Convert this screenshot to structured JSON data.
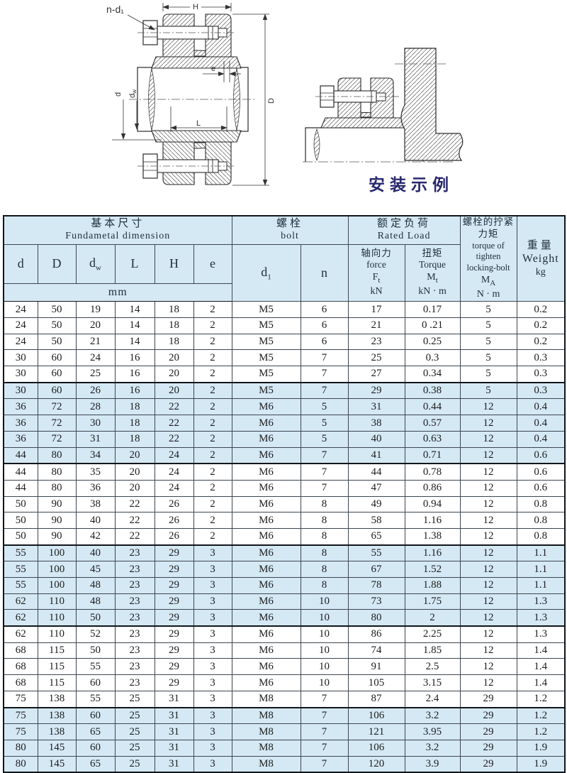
{
  "drawing": {
    "left_labels": {
      "n_d1": "n-d₁",
      "H": "H",
      "e": "e",
      "d": "d",
      "dw_base": "d",
      "dw_sub": "w",
      "L": "L",
      "D": "D"
    },
    "right_caption": "安装示例"
  },
  "colors": {
    "row_shade": "#d5e9f5",
    "caption_navy": "#28286e",
    "line_dark": "#2a2a2a"
  },
  "table": {
    "header": {
      "basic": {
        "zh": "基本尺寸",
        "en": "Fundametal  dimension"
      },
      "bolt": {
        "zh": "螺栓",
        "en": "bolt"
      },
      "rated": {
        "zh": "额定负荷",
        "en": "Rated  Load"
      },
      "dims": {
        "d": "d",
        "D": "D",
        "dw_base": "d",
        "dw_sub": "w",
        "L": "L",
        "H": "H",
        "e": "e"
      },
      "unit_mm": "mm",
      "d1": {
        "base": "d",
        "sub": "1"
      },
      "n": "n",
      "force": {
        "zh": "轴向力",
        "en": "force",
        "sym_base": "F",
        "sym_sub": "t",
        "unit": "kN"
      },
      "torque": {
        "zh": "扭矩",
        "en": "Torque",
        "sym_base": "M",
        "sym_sub": "t",
        "unit": "kN · m"
      },
      "locking": {
        "zh1": "螺栓的拧紧",
        "zh2": "力矩",
        "en1": "torque of",
        "en2": "tighten",
        "en3": "locking-bolt",
        "sym_base": "M",
        "sym_sub": "A",
        "unit": "N · m"
      },
      "weight": {
        "zh": "重量",
        "en": "Weight",
        "unit": "kg"
      }
    },
    "rows": [
      {
        "cells": [
          "24",
          "50",
          "19",
          "14",
          "18",
          "2",
          "M5",
          "6",
          "17",
          "0.17",
          "5",
          "0.2"
        ]
      },
      {
        "cells": [
          "24",
          "50",
          "20",
          "14",
          "18",
          "2",
          "M5",
          "6",
          "21",
          "0 .21",
          "5",
          "0.2"
        ]
      },
      {
        "cells": [
          "24",
          "50",
          "21",
          "14",
          "18",
          "2",
          "M5",
          "6",
          "23",
          "0.25",
          "5",
          "0.2"
        ]
      },
      {
        "cells": [
          "30",
          "60",
          "24",
          "16",
          "20",
          "2",
          "M5",
          "7",
          "25",
          "0.3",
          "5",
          "0.3"
        ]
      },
      {
        "cells": [
          "30",
          "60",
          "25",
          "16",
          "20",
          "2",
          "M5",
          "7",
          "27",
          "0.34",
          "5",
          "0.3"
        ]
      },
      {
        "cells": [
          "30",
          "60",
          "26",
          "16",
          "20",
          "2",
          "M5",
          "7",
          "29",
          "0.38",
          "5",
          "0.3"
        ]
      },
      {
        "cells": [
          "36",
          "72",
          "28",
          "18",
          "22",
          "2",
          "M6",
          "5",
          "31",
          "0.44",
          "12",
          "0.4"
        ]
      },
      {
        "cells": [
          "36",
          "72",
          "30",
          "18",
          "22",
          "2",
          "M6",
          "5",
          "38",
          "0.57",
          "12",
          "0.4"
        ]
      },
      {
        "cells": [
          "36",
          "72",
          "31",
          "18",
          "22",
          "2",
          "M6",
          "5",
          "40",
          "0.63",
          "12",
          "0.4"
        ]
      },
      {
        "cells": [
          "44",
          "80",
          "34",
          "20",
          "24",
          "2",
          "M6",
          "7",
          "41",
          "0.71",
          "12",
          "0.6"
        ]
      },
      {
        "cells": [
          "44",
          "80",
          "35",
          "20",
          "24",
          "2",
          "M6",
          "7",
          "44",
          "0.78",
          "12",
          "0.6"
        ]
      },
      {
        "cells": [
          "44",
          "80",
          "36",
          "20",
          "24",
          "2",
          "M6",
          "7",
          "47",
          "0.86",
          "12",
          "0.6"
        ]
      },
      {
        "cells": [
          "50",
          "90",
          "38",
          "22",
          "26",
          "2",
          "M6",
          "8",
          "49",
          "0.94",
          "12",
          "0.8"
        ]
      },
      {
        "cells": [
          "50",
          "90",
          "40",
          "22",
          "26",
          "2",
          "M6",
          "8",
          "58",
          "1.16",
          "12",
          "0.8"
        ]
      },
      {
        "cells": [
          "50",
          "90",
          "42",
          "22",
          "26",
          "2",
          "M6",
          "8",
          "65",
          "1.38",
          "12",
          "0.8"
        ]
      },
      {
        "cells": [
          "55",
          "100",
          "40",
          "23",
          "29",
          "3",
          "M6",
          "8",
          "55",
          "1.16",
          "12",
          "1.1"
        ]
      },
      {
        "cells": [
          "55",
          "100",
          "45",
          "23",
          "29",
          "3",
          "M6",
          "8",
          "67",
          "1.52",
          "12",
          "1.1"
        ]
      },
      {
        "cells": [
          "55",
          "100",
          "48",
          "23",
          "29",
          "3",
          "M6",
          "8",
          "78",
          "1.88",
          "12",
          "1.1"
        ]
      },
      {
        "cells": [
          "62",
          "110",
          "48",
          "23",
          "29",
          "3",
          "M6",
          "10",
          "73",
          "1.75",
          "12",
          "1.3"
        ]
      },
      {
        "cells": [
          "62",
          "110",
          "50",
          "23",
          "29",
          "3",
          "M6",
          "10",
          "80",
          "2",
          "12",
          "1.3"
        ]
      },
      {
        "cells": [
          "62",
          "110",
          "52",
          "23",
          "29",
          "3",
          "M6",
          "10",
          "86",
          "2.25",
          "12",
          "1.3"
        ]
      },
      {
        "cells": [
          "68",
          "115",
          "50",
          "23",
          "29",
          "3",
          "M6",
          "10",
          "74",
          "1.85",
          "12",
          "1.4"
        ]
      },
      {
        "cells": [
          "68",
          "115",
          "55",
          "23",
          "29",
          "3",
          "M6",
          "10",
          "91",
          "2.5",
          "12",
          "1.4"
        ]
      },
      {
        "cells": [
          "68",
          "115",
          "60",
          "23",
          "29",
          "3",
          "M6",
          "10",
          "105",
          "3.15",
          "12",
          "1.4"
        ]
      },
      {
        "cells": [
          "75",
          "138",
          "55",
          "25",
          "31",
          "3",
          "M8",
          "7",
          "87",
          "2.4",
          "29",
          "1.2"
        ]
      },
      {
        "cells": [
          "75",
          "138",
          "60",
          "25",
          "31",
          "3",
          "M8",
          "7",
          "106",
          "3.2",
          "29",
          "1.2"
        ]
      },
      {
        "cells": [
          "75",
          "138",
          "65",
          "25",
          "31",
          "3",
          "M8",
          "7",
          "121",
          "3.95",
          "29",
          "1.2"
        ]
      },
      {
        "cells": [
          "80",
          "145",
          "60",
          "25",
          "31",
          "3",
          "M8",
          "7",
          "106",
          "3.2",
          "29",
          "1.9"
        ]
      },
      {
        "cells": [
          "80",
          "145",
          "65",
          "25",
          "31",
          "3",
          "M8",
          "7",
          "120",
          "3.9",
          "29",
          "1.9"
        ]
      }
    ]
  }
}
